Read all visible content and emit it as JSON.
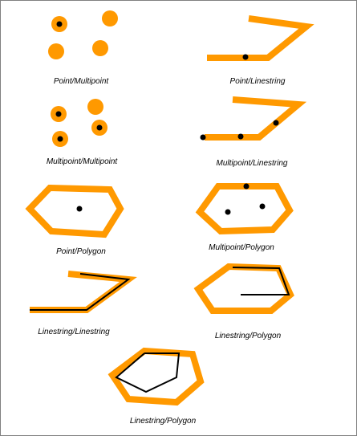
{
  "colors": {
    "geometry": "#FF9900",
    "overlay": "#000000"
  },
  "panels": [
    {
      "id": "point-multipoint",
      "caption": "Point/Multipoint"
    },
    {
      "id": "point-linestring",
      "caption": "Point/Linestring"
    },
    {
      "id": "multipoint-multipoint",
      "caption": "Multipoint/Multipoint"
    },
    {
      "id": "multipoint-linestring",
      "caption": "Multipoint/Linestring"
    },
    {
      "id": "point-polygon",
      "caption": "Point/Polygon"
    },
    {
      "id": "multipoint-polygon",
      "caption": "Multipoint/Polygon"
    },
    {
      "id": "linestring-linestring",
      "caption": "Linestring/Linestring"
    },
    {
      "id": "linestring-polygon",
      "caption": "Linestring/Polygon"
    },
    {
      "id": "linestring-polygon-bottom",
      "caption": "Linestring/Polygon"
    }
  ]
}
